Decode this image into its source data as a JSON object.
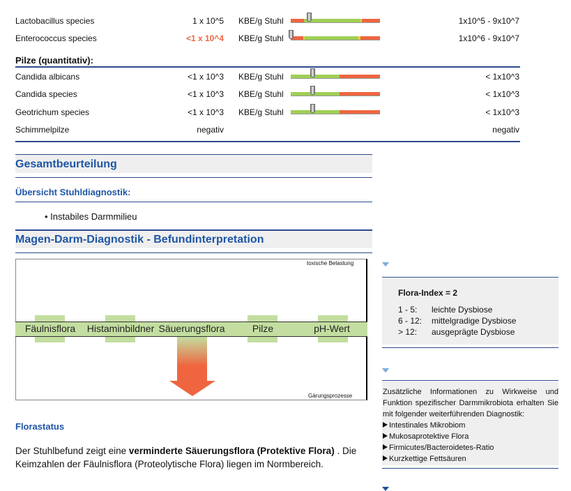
{
  "bakterien": [
    {
      "name": "Lactobacillus species",
      "value": "1 x 10^5",
      "unit": "KBE/g Stuhl",
      "ref": "1x10^5 - 9x10^7",
      "highlight": false,
      "marker": 0.2,
      "segments": [
        [
          "#ee6540",
          0,
          0.15
        ],
        [
          "#9fcf55",
          0.15,
          0.78
        ],
        [
          "#e0d040",
          0.78,
          0.8
        ],
        [
          "#ee6540",
          0.8,
          1
        ]
      ]
    },
    {
      "name": "Enterococcus species",
      "value": "<1 x 10^4",
      "unit": "KBE/g Stuhl",
      "ref": "1x10^6 - 9x10^7",
      "highlight": true,
      "marker": 0.0,
      "segments": [
        [
          "#ee6540",
          0,
          0.14
        ],
        [
          "#e0d040",
          0.14,
          0.16
        ],
        [
          "#9fcf55",
          0.16,
          0.75
        ],
        [
          "#e0d040",
          0.75,
          0.78
        ],
        [
          "#ee6540",
          0.78,
          1
        ]
      ]
    }
  ],
  "pilze_heading": "Pilze (quantitativ):",
  "pilze": [
    {
      "name": "Candida albicans",
      "value": "<1 x 10^3",
      "unit": "KBE/g Stuhl",
      "ref": "< 1x10^3",
      "marker": 0.24
    },
    {
      "name": "Candida species",
      "value": "<1 x 10^3",
      "unit": "KBE/g Stuhl",
      "ref": "< 1x10^3",
      "marker": 0.24
    },
    {
      "name": "Geotrichum species",
      "value": "<1 x 10^3",
      "unit": "KBE/g Stuhl",
      "ref": "< 1x10^3",
      "marker": 0.24
    },
    {
      "name": "Schimmelpilze",
      "value": "negativ",
      "unit": "",
      "ref": "negativ",
      "marker": null
    }
  ],
  "gesamt": {
    "title": "Gesamtbeurteilung",
    "sub": "Übersicht Stuhldiagnostik:",
    "bullets": [
      "Instabiles Darmmilieu"
    ]
  },
  "magen": {
    "title": "Magen-Darm-Diagnostik - Befundinterpretation",
    "diagram": {
      "top": "toxische Belastung",
      "bottom": "Gärungsprozesse",
      "items": [
        "Fäulnisflora",
        "Histaminbildner",
        "Säuerungsflora",
        "Pilze",
        "pH-Wert"
      ],
      "arrow_item": "Säuerungsflora"
    }
  },
  "florastatus": {
    "title": "Florastatus",
    "p1_pre": "Der Stuhlbefund zeigt eine ",
    "p1_bold": "verminderte Säuerungsflora (Protektive Flora)",
    "p1_post": " . Die",
    "p2": "Keimzahlen der Fäulnisflora (Proteolytische Flora) liegen im Normbereich."
  },
  "flora_index": {
    "title": "Flora-Index = 2",
    "rows": [
      [
        "1 - 5:",
        "leichte Dysbiose"
      ],
      [
        "6 - 12:",
        "mittelgradige Dysbiose"
      ],
      [
        "> 12:",
        "ausgeprägte Dysbiose"
      ]
    ]
  },
  "info": {
    "l1": "Zusätzliche Informationen zu Wirkweise und",
    "l2": "Funktion spezifischer Darmmikrobiota erhalten Sie",
    "l3": "mit folgender weiterführenden Diagnostik:",
    "links": [
      "Intestinales Mikrobiom",
      "Mukosaprotektive Flora",
      "Firmicutes/Bacteroidetes-Ratio",
      "Kurzkettige Fettsäuren"
    ]
  },
  "colors": {
    "accent": "#1f56a5",
    "red": "#ee6540",
    "green": "#9fcf55",
    "band": "#c3dea0"
  }
}
